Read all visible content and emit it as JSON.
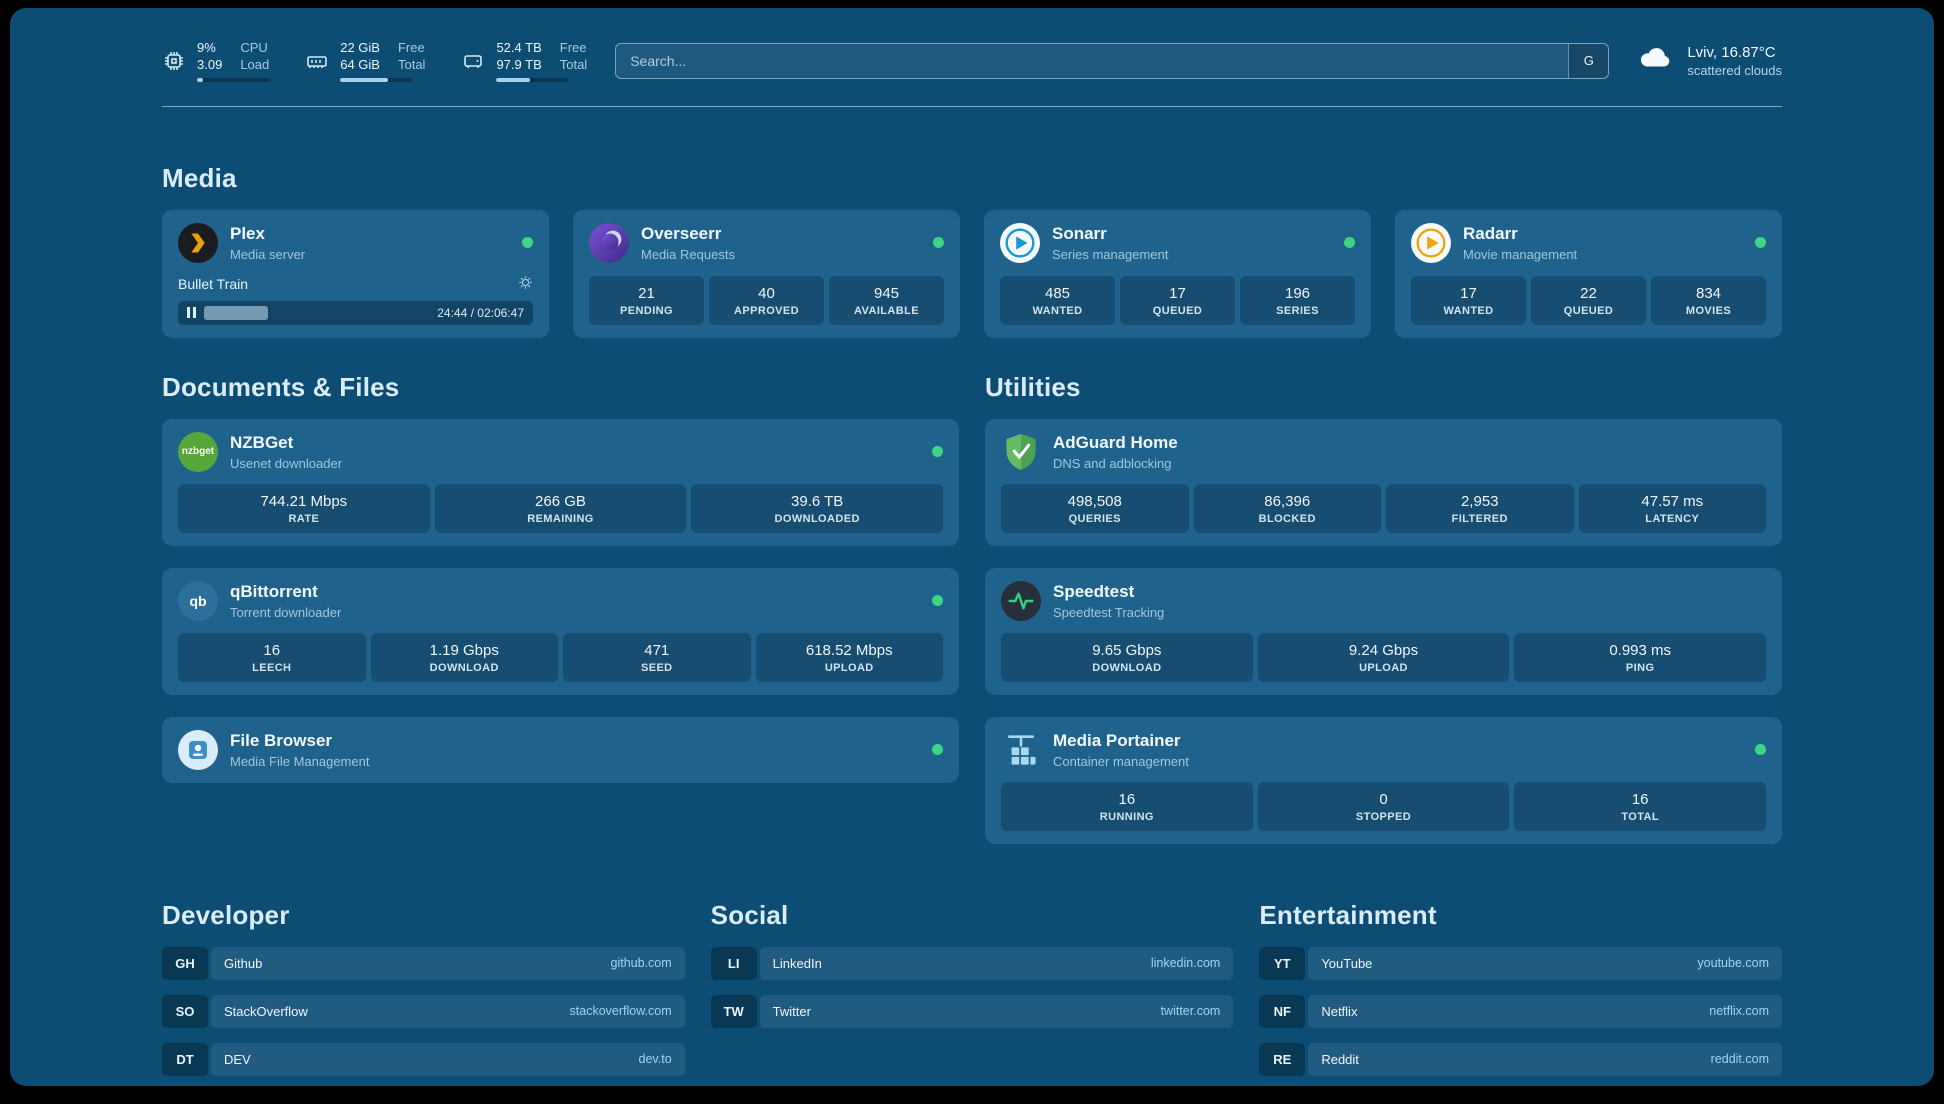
{
  "theme": {
    "background": "#0d4c73",
    "card": "#1f628c",
    "status_green": "#3ed584",
    "link": "#9fd4f3"
  },
  "icons": {
    "cpu-icon": "chip",
    "memory-icon": "ram-stick",
    "storage-icon": "hard-drive",
    "weather-icon": "cloud",
    "settings-icon": "gear",
    "pause-icon": "pause-bars",
    "status-icon": "green-dot"
  },
  "topbar": {
    "cpu": {
      "value_top": "9%",
      "value_bottom": "3.09",
      "label_top": "CPU",
      "label_bottom": "Load",
      "percent": 9
    },
    "ram": {
      "value_top": "22 GiB",
      "value_bottom": "64 GiB",
      "label_top": "Free",
      "label_bottom": "Total",
      "percent": 66
    },
    "disk": {
      "value_top": "52.4 TB",
      "value_bottom": "97.9 TB",
      "label_top": "Free",
      "label_bottom": "Total",
      "percent": 46
    },
    "search": {
      "placeholder": "Search...",
      "engine_label": "G"
    },
    "weather": {
      "location": "Lviv, 16.87°C",
      "condition": "scattered clouds"
    }
  },
  "sections": {
    "media": {
      "title": "Media"
    },
    "documents": {
      "title": "Documents & Files"
    },
    "utilities": {
      "title": "Utilities"
    },
    "developer": {
      "title": "Developer"
    },
    "social": {
      "title": "Social"
    },
    "entertainment": {
      "title": "Entertainment"
    }
  },
  "services": {
    "plex": {
      "name": "Plex",
      "description": "Media server",
      "now_playing": "Bullet Train",
      "time": "24:44 / 02:06:47",
      "progress_percent": 19
    },
    "overseerr": {
      "name": "Overseerr",
      "description": "Media Requests",
      "stats": [
        {
          "value": "21",
          "label": "PENDING"
        },
        {
          "value": "40",
          "label": "APPROVED"
        },
        {
          "value": "945",
          "label": "AVAILABLE"
        }
      ]
    },
    "sonarr": {
      "name": "Sonarr",
      "description": "Series management",
      "stats": [
        {
          "value": "485",
          "label": "WANTED"
        },
        {
          "value": "17",
          "label": "QUEUED"
        },
        {
          "value": "196",
          "label": "SERIES"
        }
      ]
    },
    "radarr": {
      "name": "Radarr",
      "description": "Movie management",
      "stats": [
        {
          "value": "17",
          "label": "WANTED"
        },
        {
          "value": "22",
          "label": "QUEUED"
        },
        {
          "value": "834",
          "label": "MOVIES"
        }
      ]
    },
    "nzbget": {
      "name": "NZBGet",
      "description": "Usenet downloader",
      "stats": [
        {
          "value": "744.21 Mbps",
          "label": "RATE"
        },
        {
          "value": "266 GB",
          "label": "REMAINING"
        },
        {
          "value": "39.6 TB",
          "label": "DOWNLOADED"
        }
      ]
    },
    "qbittorrent": {
      "name": "qBittorrent",
      "description": "Torrent downloader",
      "stats": [
        {
          "value": "16",
          "label": "LEECH"
        },
        {
          "value": "1.19 Gbps",
          "label": "DOWNLOAD"
        },
        {
          "value": "471",
          "label": "SEED"
        },
        {
          "value": "618.52 Mbps",
          "label": "UPLOAD"
        }
      ]
    },
    "filebrowser": {
      "name": "File Browser",
      "description": "Media File Management"
    },
    "adguard": {
      "name": "AdGuard Home",
      "description": "DNS and adblocking",
      "stats": [
        {
          "value": "498,508",
          "label": "QUERIES"
        },
        {
          "value": "86,396",
          "label": "BLOCKED"
        },
        {
          "value": "2,953",
          "label": "FILTERED"
        },
        {
          "value": "47.57 ms",
          "label": "LATENCY"
        }
      ]
    },
    "speedtest": {
      "name": "Speedtest",
      "description": "Speedtest Tracking",
      "stats": [
        {
          "value": "9.65 Gbps",
          "label": "DOWNLOAD"
        },
        {
          "value": "9.24 Gbps",
          "label": "UPLOAD"
        },
        {
          "value": "0.993 ms",
          "label": "PING"
        }
      ]
    },
    "portainer": {
      "name": "Media Portainer",
      "description": "Container management",
      "stats": [
        {
          "value": "16",
          "label": "RUNNING"
        },
        {
          "value": "0",
          "label": "STOPPED"
        },
        {
          "value": "16",
          "label": "TOTAL"
        }
      ]
    }
  },
  "bookmarks": {
    "developer": {
      "items": [
        {
          "abbr": "GH",
          "name": "Github",
          "url": "github.com"
        },
        {
          "abbr": "SO",
          "name": "StackOverflow",
          "url": "stackoverflow.com"
        },
        {
          "abbr": "DT",
          "name": "DEV",
          "url": "dev.to"
        }
      ]
    },
    "social": {
      "items": [
        {
          "abbr": "LI",
          "name": "LinkedIn",
          "url": "linkedin.com"
        },
        {
          "abbr": "TW",
          "name": "Twitter",
          "url": "twitter.com"
        }
      ]
    },
    "entertainment": {
      "items": [
        {
          "abbr": "YT",
          "name": "YouTube",
          "url": "youtube.com"
        },
        {
          "abbr": "NF",
          "name": "Netflix",
          "url": "netflix.com"
        },
        {
          "abbr": "RE",
          "name": "Reddit",
          "url": "reddit.com"
        }
      ]
    }
  }
}
